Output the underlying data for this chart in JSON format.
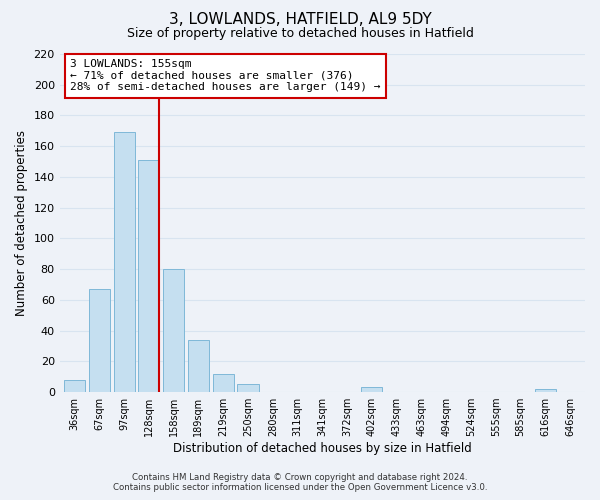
{
  "title": "3, LOWLANDS, HATFIELD, AL9 5DY",
  "subtitle": "Size of property relative to detached houses in Hatfield",
  "xlabel": "Distribution of detached houses by size in Hatfield",
  "ylabel": "Number of detached properties",
  "bar_color": "#c5dff0",
  "bar_edge_color": "#7fb8d8",
  "bg_color": "#eef2f8",
  "grid_color": "#d8e4f0",
  "categories": [
    "36sqm",
    "67sqm",
    "97sqm",
    "128sqm",
    "158sqm",
    "189sqm",
    "219sqm",
    "250sqm",
    "280sqm",
    "311sqm",
    "341sqm",
    "372sqm",
    "402sqm",
    "433sqm",
    "463sqm",
    "494sqm",
    "524sqm",
    "555sqm",
    "585sqm",
    "616sqm",
    "646sqm"
  ],
  "values": [
    8,
    67,
    169,
    151,
    80,
    34,
    12,
    5,
    0,
    0,
    0,
    0,
    3,
    0,
    0,
    0,
    0,
    0,
    0,
    2,
    0
  ],
  "ylim": [
    0,
    220
  ],
  "yticks": [
    0,
    20,
    40,
    60,
    80,
    100,
    120,
    140,
    160,
    180,
    200,
    220
  ],
  "annotation_text_line1": "3 LOWLANDS: 155sqm",
  "annotation_text_line2": "← 71% of detached houses are smaller (376)",
  "annotation_text_line3": "28% of semi-detached houses are larger (149) →",
  "annotation_box_color": "white",
  "annotation_box_edge": "#cc0000",
  "property_line_color": "#cc0000",
  "footer_line1": "Contains HM Land Registry data © Crown copyright and database right 2024.",
  "footer_line2": "Contains public sector information licensed under the Open Government Licence v3.0."
}
